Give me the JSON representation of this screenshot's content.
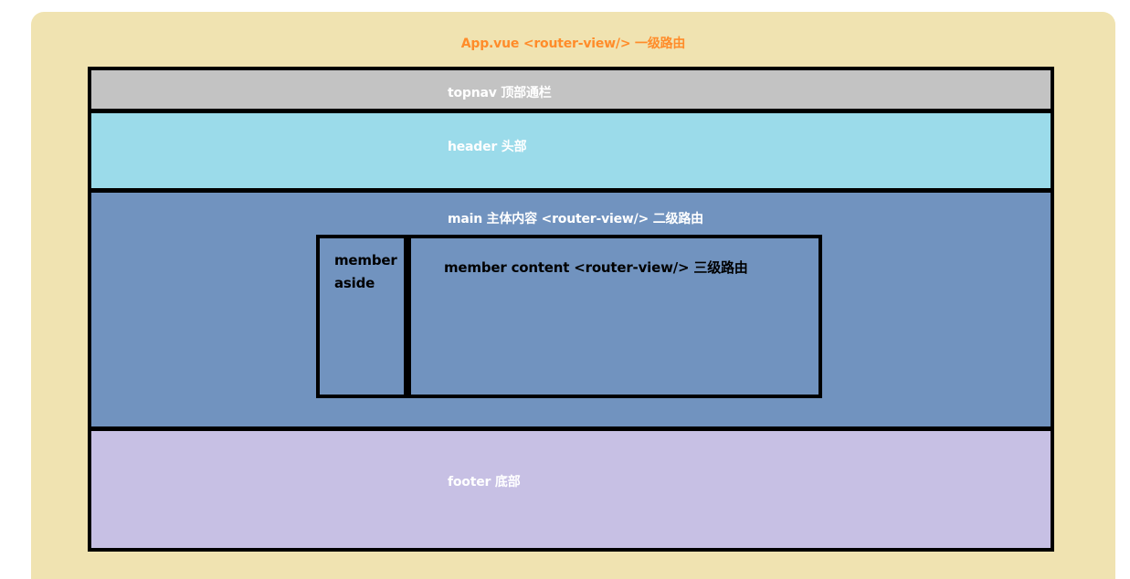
{
  "colors": {
    "app_bg": "#f0e3b1",
    "app_title": "#ff8c2a",
    "topnav_bg": "#c3c3c3",
    "header_bg": "#9bdbea",
    "main_bg": "#7193bf",
    "footer_bg": "#c7c0e4",
    "frame_border": "#000000"
  },
  "app": {
    "title": "App.vue <router-view/> 一级路由"
  },
  "topnav": {
    "label": "topnav  顶部通栏"
  },
  "header": {
    "label": "header 头部"
  },
  "main": {
    "label": "main  主体内容  <router-view/> 二级路由"
  },
  "member_aside": {
    "line1": "member",
    "line2": "aside"
  },
  "member_content": {
    "label": "member content <router-view/> 三级路由"
  },
  "footer": {
    "label": "footer 底部"
  }
}
